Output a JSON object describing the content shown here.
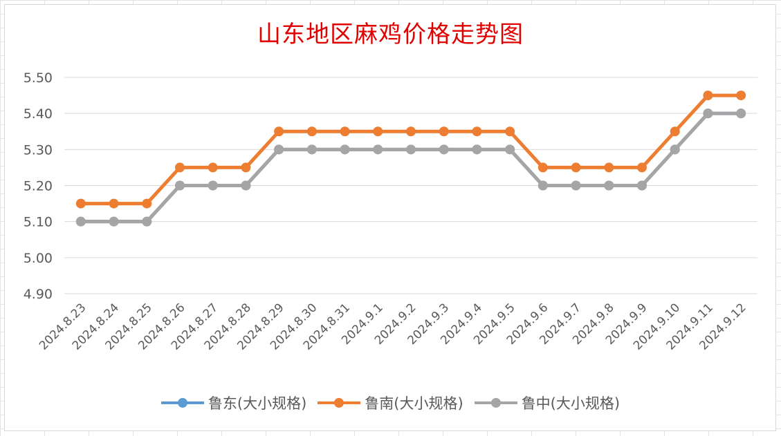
{
  "chart_data": {
    "type": "line",
    "title": "山东地区麻鸡价格走势图",
    "categories": [
      "2024.8.23",
      "2024.8.24",
      "2024.8.25",
      "2024.8.26",
      "2024.8.27",
      "2024.8.28",
      "2024.8.29",
      "2024.8.30",
      "2024.8.31",
      "2024.9.1",
      "2024.9.2",
      "2024.9.3",
      "2024.9.4",
      "2024.9.5",
      "2024.9.6",
      "2024.9.7",
      "2024.9.8",
      "2024.9.9",
      "2024.9.10",
      "2024.9.11",
      "2024.9.12"
    ],
    "series": [
      {
        "name": "鲁东(大小规格)",
        "color": "#5b9bd5",
        "values": [
          5.1,
          5.1,
          5.1,
          5.2,
          5.2,
          5.2,
          5.3,
          5.3,
          5.3,
          5.3,
          5.3,
          5.3,
          5.3,
          5.3,
          5.2,
          5.2,
          5.2,
          5.2,
          5.3,
          5.4,
          5.4
        ]
      },
      {
        "name": "鲁南(大小规格)",
        "color": "#ed7d31",
        "values": [
          5.15,
          5.15,
          5.15,
          5.25,
          5.25,
          5.25,
          5.35,
          5.35,
          5.35,
          5.35,
          5.35,
          5.35,
          5.35,
          5.35,
          5.25,
          5.25,
          5.25,
          5.25,
          5.35,
          5.45,
          5.45
        ]
      },
      {
        "name": "鲁中(大小规格)",
        "color": "#a5a5a5",
        "values": [
          5.1,
          5.1,
          5.1,
          5.2,
          5.2,
          5.2,
          5.3,
          5.3,
          5.3,
          5.3,
          5.3,
          5.3,
          5.3,
          5.3,
          5.2,
          5.2,
          5.2,
          5.2,
          5.3,
          5.4,
          5.4
        ]
      }
    ],
    "yticks": [
      "4.90",
      "5.00",
      "5.10",
      "5.20",
      "5.30",
      "5.40",
      "5.50"
    ],
    "ylim": [
      4.9,
      5.5
    ],
    "grid": true,
    "legend_position": "bottom"
  }
}
